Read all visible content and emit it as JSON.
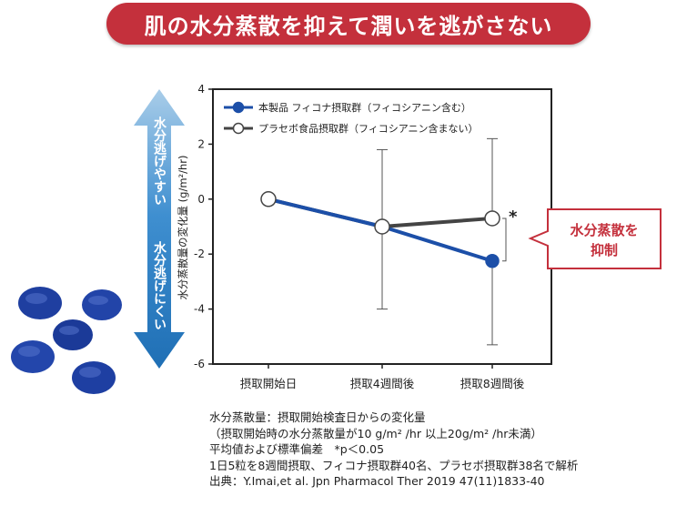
{
  "header": {
    "title": "肌の水分蒸散を抑えて潤いを逃がさない"
  },
  "side_arrow": {
    "top_label": "水分逃げやすい",
    "bottom_label": "水分逃げにくい",
    "color": "#2b7cc0"
  },
  "callout": {
    "line1": "水分蒸散を",
    "line2": "抑制",
    "color": "#c4303c"
  },
  "significance_marker": "*",
  "chart_data": {
    "type": "line",
    "categories": [
      "摂取開始日",
      "摂取4週間後",
      "摂取8週間後"
    ],
    "ylabel": "水分蒸散量の変化量 (g/m²/hr)",
    "xlabel": "",
    "ylim": [
      -6,
      4
    ],
    "yticks": [
      4,
      2,
      0,
      -2,
      -4,
      -6
    ],
    "legend_position": "top-left",
    "series": [
      {
        "name": "本製品 フィコナ摂取群（フィコシアニン含む）",
        "values": [
          0,
          -1.0,
          -2.25
        ],
        "error_upper": [
          null,
          null,
          null
        ],
        "error_lower": [
          null,
          null,
          -5.3
        ],
        "color": "#1c4fa8",
        "marker": "filled"
      },
      {
        "name": "プラセボ食品摂取群（フィコシアニン含まない）",
        "values": [
          0,
          -1.0,
          -0.7
        ],
        "error_upper": [
          null,
          1.8,
          2.2
        ],
        "error_lower": [
          null,
          -4.0,
          null
        ],
        "color": "#444444",
        "marker": "open"
      }
    ]
  },
  "notes": [
    "水分蒸散量：摂取開始検査日からの変化量",
    "（摂取開始時の水分蒸散量が10 g/m² /hr 以上20g/m² /hr未満）",
    "平均値および標準偏差　*p＜0.05",
    "1日5粒を8週間摂取、フィコナ摂取群40名、プラセボ摂取群38名で解析",
    "出典：Y.Imai,et al. Jpn Pharmacol Ther 2019 47(11)1833-40"
  ]
}
